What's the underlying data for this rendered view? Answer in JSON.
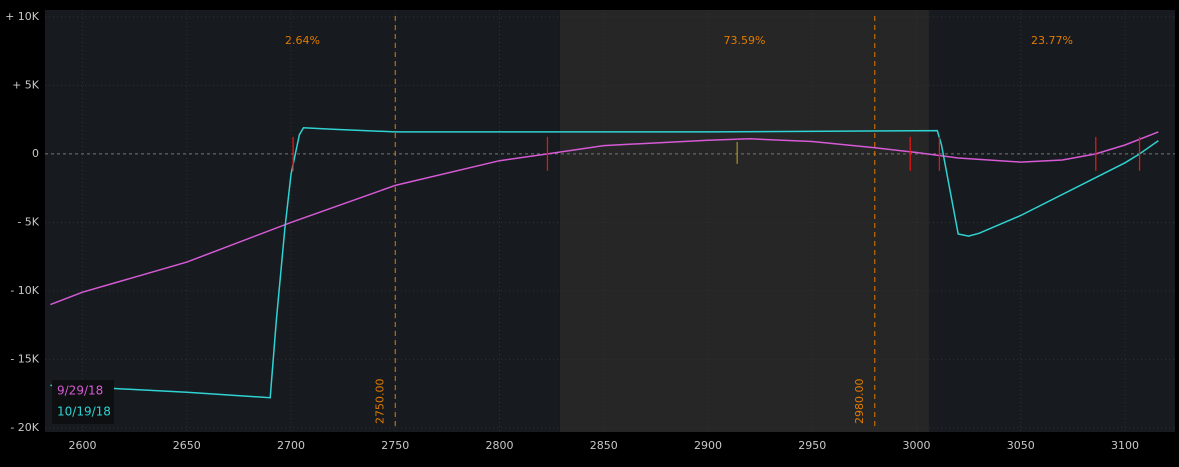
{
  "chart_data": {
    "type": "line",
    "x": null,
    "xlim": [
      2582,
      3124
    ],
    "ylim": [
      -20300,
      10500
    ],
    "xticks": [
      2600,
      2650,
      2700,
      2750,
      2800,
      2850,
      2900,
      2950,
      3000,
      3050,
      3100
    ],
    "yticks": [
      {
        "value": 10000,
        "label": "+ 10K"
      },
      {
        "value": 5000,
        "label": "+ 5K"
      },
      0,
      {
        "value": -5000,
        "label": "- 5K"
      },
      {
        "value": -10000,
        "label": "- 10K"
      },
      {
        "value": -15000,
        "label": "- 15K"
      },
      {
        "value": -20000,
        "label": "- 20K"
      }
    ],
    "grid": true,
    "regions": {
      "edges": [
        2829,
        3006
      ],
      "values": [
        2.64,
        73.59,
        23.77
      ],
      "value_labels": [
        "2.64%",
        "73.59%",
        "23.77%"
      ],
      "color": "#e07b00"
    },
    "strikes": [
      {
        "value": 2750,
        "label": "2750.00"
      },
      {
        "value": 2980,
        "label": "2980.00"
      }
    ],
    "breakevens": [
      2701,
      2823,
      2997,
      3011,
      3086,
      3107
    ],
    "current_price": 2914,
    "legend": "bottom-left",
    "series": [
      {
        "name": "9/29/18",
        "color": "#d65ad6",
        "x": [
          2584.6,
          2600,
          2650,
          2700,
          2750,
          2800,
          2823,
          2850,
          2900,
          2920,
          2950,
          2980,
          3000,
          3020,
          3050,
          3070,
          3086,
          3100,
          3116
        ],
        "values": [
          -11000,
          -10100,
          -7900,
          -5000,
          -2300,
          -500,
          0,
          600,
          1000,
          1100,
          900,
          450,
          100,
          -300,
          -600,
          -450,
          0,
          650,
          1600
        ]
      },
      {
        "name": "10/19/18",
        "color": "#2fd3d3",
        "x": [
          2584.6,
          2600,
          2650,
          2690,
          2693,
          2697,
          2700,
          2704,
          2706,
          2720,
          2750,
          2900,
          3010,
          3012,
          3020,
          3025,
          3030,
          3050,
          3100,
          3107,
          3116
        ],
        "values": [
          -16900,
          -17000,
          -17400,
          -17800,
          -12100,
          -5500,
          -1500,
          1400,
          1900,
          1800,
          1600,
          1600,
          1700,
          650,
          -5850,
          -6000,
          -5800,
          -4500,
          -650,
          0,
          950
        ]
      }
    ]
  }
}
